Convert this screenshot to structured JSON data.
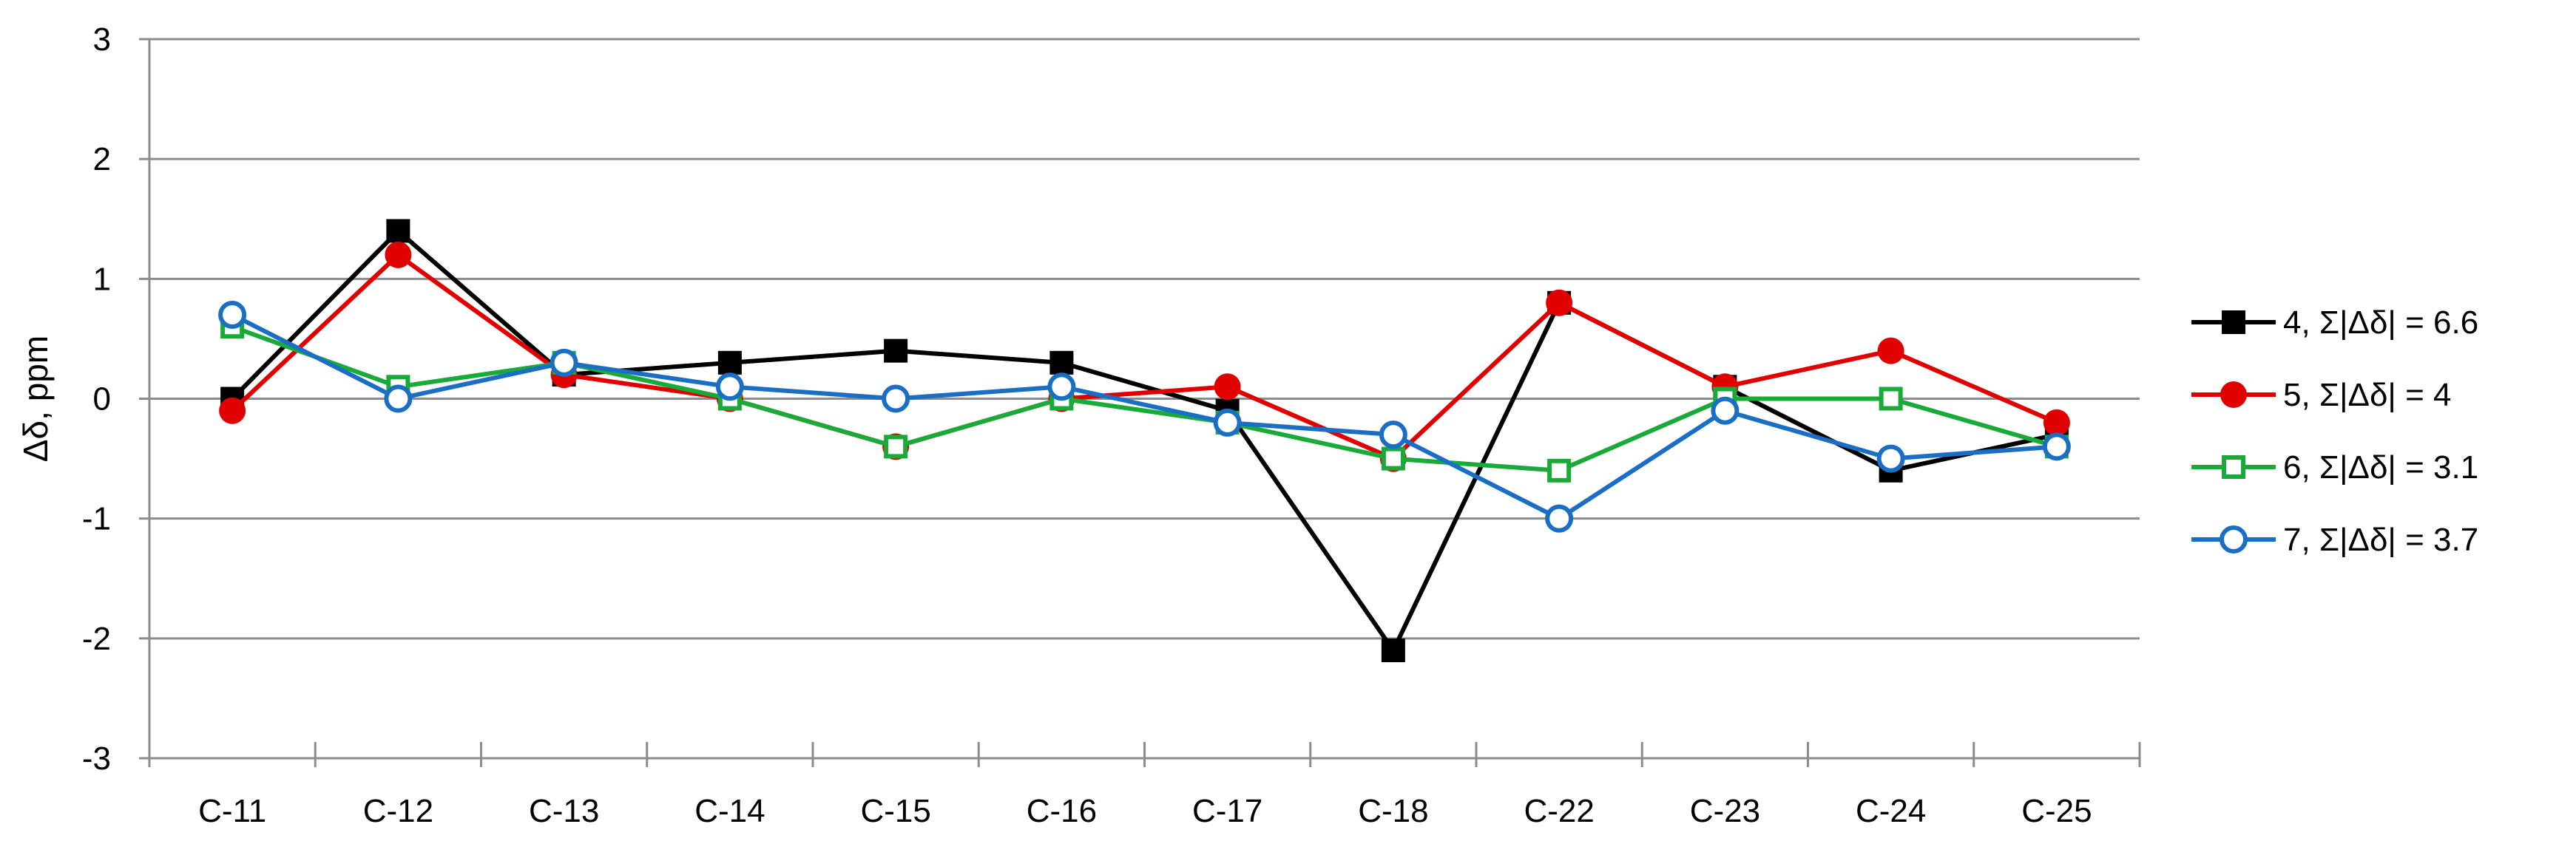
{
  "chart_data": {
    "type": "line",
    "title": "",
    "xlabel": "",
    "ylabel": "Δδ, ppm",
    "ylim": [
      -3,
      3
    ],
    "yticks": [
      3,
      2,
      1,
      0,
      -1,
      -2,
      -3
    ],
    "grid": true,
    "legend_position": "right",
    "categories": [
      "C-11",
      "C-12",
      "C-13",
      "C-14",
      "C-15",
      "C-16",
      "C-17",
      "C-18",
      "C-22",
      "C-23",
      "C-24",
      "C-25"
    ],
    "series": [
      {
        "name": "4,   Σ|Δδ| = 6.6",
        "color": "#000000",
        "marker": "filled-square",
        "values": [
          0.0,
          1.4,
          0.2,
          0.3,
          0.4,
          0.3,
          -0.1,
          -2.1,
          0.8,
          0.1,
          -0.6,
          -0.3
        ]
      },
      {
        "name": "5,   Σ|Δδ| = 4",
        "color": "#e00000",
        "marker": "filled-circle",
        "values": [
          -0.1,
          1.2,
          0.2,
          0.0,
          -0.4,
          0.0,
          0.1,
          -0.5,
          0.8,
          0.1,
          0.4,
          -0.2
        ]
      },
      {
        "name": "6,   Σ|Δδ| = 3.1",
        "color": "#1aaa3a",
        "marker": "open-square",
        "values": [
          0.6,
          0.1,
          0.3,
          0.0,
          -0.4,
          0.0,
          -0.2,
          -0.5,
          -0.6,
          0.0,
          0.0,
          -0.4
        ]
      },
      {
        "name": "7,   Σ|Δδ| = 3.7",
        "color": "#1a6fc4",
        "marker": "open-circle",
        "values": [
          0.7,
          0.0,
          0.3,
          0.1,
          0.0,
          0.1,
          -0.2,
          -0.3,
          -1.0,
          -0.1,
          -0.5,
          -0.4
        ]
      }
    ]
  }
}
